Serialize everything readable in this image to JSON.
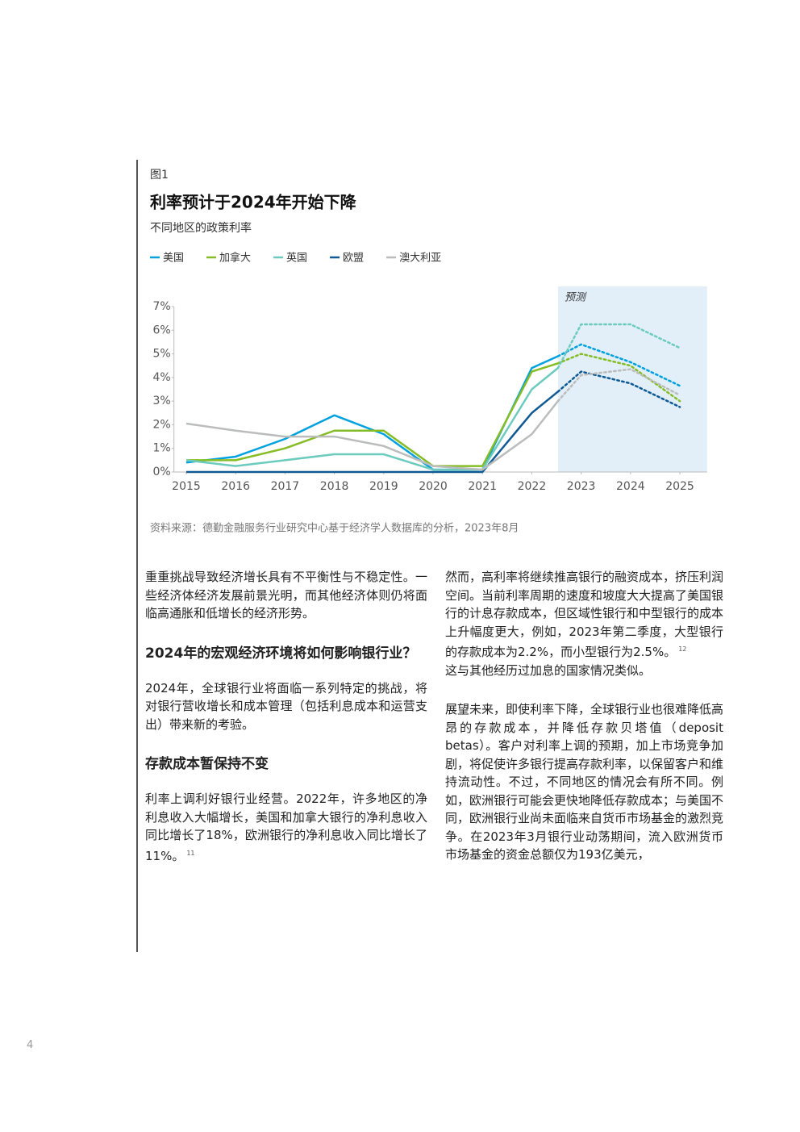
{
  "chart_data": {
    "type": "line",
    "figure_label": "图1",
    "title": "利率预计于2024年开始下降",
    "subtitle": "不同地区的政策利率",
    "forecast_label": "预测",
    "forecast_span": [
      2022.53,
      2025.55
    ],
    "x": [
      2015,
      2016,
      2017,
      2018,
      2019,
      2020,
      2021,
      2022,
      2022.53,
      2023,
      2024,
      2025
    ],
    "xticks": [
      2015,
      2016,
      2017,
      2018,
      2019,
      2020,
      2021,
      2022,
      2023,
      2024,
      2025
    ],
    "xlim": [
      2014.75,
      2025.55
    ],
    "ylim": [
      0,
      7
    ],
    "yticks": [
      {
        "value": 0,
        "label": "0%"
      },
      {
        "value": 1,
        "label": "1%"
      },
      {
        "value": 2,
        "label": "2%"
      },
      {
        "value": 3,
        "label": "3%"
      },
      {
        "value": 4,
        "label": "4%"
      },
      {
        "value": 5,
        "label": "5%"
      },
      {
        "value": 6,
        "label": "6%"
      },
      {
        "value": 7,
        "label": "7%"
      }
    ],
    "series": [
      {
        "name": "美国",
        "color": "#00a1de",
        "values": [
          0.4,
          0.65,
          1.4,
          2.4,
          1.6,
          0.1,
          0.1,
          4.4,
          4.9,
          null,
          null,
          null
        ],
        "forecast": [
          null,
          null,
          null,
          null,
          null,
          null,
          null,
          null,
          4.9,
          5.4,
          4.65,
          3.65
        ]
      },
      {
        "name": "加拿大",
        "color": "#86bc25",
        "values": [
          0.5,
          0.5,
          1.0,
          1.75,
          1.75,
          0.25,
          0.25,
          4.25,
          4.6,
          null,
          null,
          null
        ],
        "forecast": [
          null,
          null,
          null,
          null,
          null,
          null,
          null,
          null,
          4.6,
          5.0,
          4.5,
          3.0
        ]
      },
      {
        "name": "英国",
        "color": "#6ccbbd",
        "values": [
          0.5,
          0.25,
          0.5,
          0.75,
          0.75,
          0.1,
          0.1,
          3.5,
          4.4,
          null,
          null,
          null
        ],
        "forecast": [
          null,
          null,
          null,
          null,
          null,
          null,
          null,
          null,
          4.4,
          6.25,
          6.25,
          5.25
        ]
      },
      {
        "name": "欧盟",
        "color": "#0f5a94",
        "values": [
          0,
          0,
          0,
          0,
          0,
          0,
          0,
          2.5,
          3.4,
          null,
          null,
          null
        ],
        "forecast": [
          null,
          null,
          null,
          null,
          null,
          null,
          null,
          null,
          3.4,
          4.25,
          3.75,
          2.75
        ]
      },
      {
        "name": "澳大利亚",
        "color": "#bbbcbc",
        "values": [
          2.05,
          1.75,
          1.5,
          1.5,
          1.1,
          0.25,
          0.1,
          1.6,
          3.0,
          null,
          null,
          null
        ],
        "forecast": [
          null,
          null,
          null,
          null,
          null,
          null,
          null,
          null,
          3.0,
          4.1,
          4.35,
          3.25
        ]
      }
    ],
    "source": "资料来源：德勤金融服务行业研究中心基于经济学人数据库的分析，2023年8月"
  },
  "left_column": [
    {
      "kind": "p",
      "text": "重重挑战导致经济增长具有不平衡性与不稳定性。一些经济体经济发展前景光明，而其他经济体则仍将面临高通胀和低增长的经济形势。"
    },
    {
      "kind": "h",
      "text": "2024年的宏观经济环境将如何影响银行业？"
    },
    {
      "kind": "p",
      "text": "2024年，全球银行业将面临一系列特定的挑战，将对银行营收增长和成本管理（包括利息成本和运营支出）带来新的考验。"
    },
    {
      "kind": "h",
      "text": "存款成本暂保持不变"
    },
    {
      "kind": "p",
      "text": "利率上调利好银行业经营。2022年，许多地区的净利息收入大幅增长，美国和加拿大银行的净利息收入同比增长了18%，欧洲银行的净利息收入同比增长了11%。",
      "note": "11"
    }
  ],
  "right_column": [
    {
      "kind": "p",
      "text": "然而，高利率将继续推高银行的融资成本，挤压利润空间。当前利率周期的速度和坡度大大提高了美国银行的计息存款成本，但区域性银行和中型银行的成本上升幅度更大，例如，2023年第二季度，大型银行的存款成本为2.2%，而小型银行为2.5%。",
      "note": "12",
      "text_after": "这与其他经历过加息的国家情况类似。"
    },
    {
      "kind": "p",
      "text": "展望未来，即使利率下降，全球银行业也很难降低高昂的存款成本，并降低存款贝塔值（deposit betas）。客户对利率上调的预期，加上市场竞争加剧，将促使许多银行提高存款利率，以保留客户和维持流动性。不过，不同地区的情况会有所不同。例如，欧洲银行可能会更快地降低存款成本；与美国不同，欧洲银行业尚未面临来自货币市场基金的激烈竞争。在2023年3月银行业动荡期间，流入欧洲货币市场基金的资金总额仅为193亿美元，"
    }
  ],
  "page_number": "4"
}
